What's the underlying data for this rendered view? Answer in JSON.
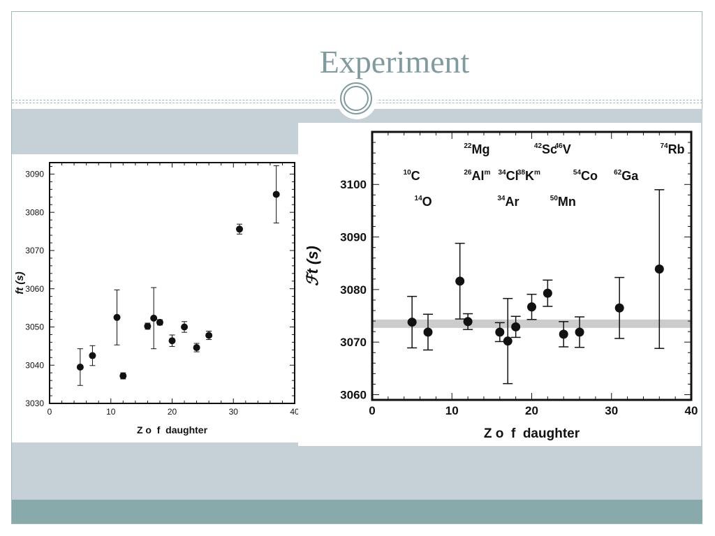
{
  "slide": {
    "title": "Experiment",
    "colors": {
      "title": "#7e9c9f",
      "band": "#c5d1d6",
      "footer": "#89aaab",
      "frame": "#9fb8b8"
    }
  },
  "chart_data": [
    {
      "type": "scatter",
      "title": "",
      "xlabel": "Z o  f  daughter",
      "ylabel": "ft (s)",
      "xlim": [
        0,
        40
      ],
      "ylim": [
        3030,
        3093
      ],
      "x_ticks": [
        0,
        10,
        20,
        30,
        40
      ],
      "y_ticks": [
        3030,
        3040,
        3050,
        3060,
        3070,
        3080,
        3090
      ],
      "points": [
        {
          "x": 5,
          "y": 3039.5,
          "err": 4.8
        },
        {
          "x": 7,
          "y": 3042.5,
          "err": 2.6
        },
        {
          "x": 11,
          "y": 3052.5,
          "err": 7.2
        },
        {
          "x": 12,
          "y": 3037.2,
          "err": 0.8
        },
        {
          "x": 16,
          "y": 3050.2,
          "err": 0.8
        },
        {
          "x": 17,
          "y": 3052.3,
          "err": 8.0
        },
        {
          "x": 18,
          "y": 3051.2,
          "err": 0.7
        },
        {
          "x": 20,
          "y": 3046.4,
          "err": 1.5
        },
        {
          "x": 22,
          "y": 3050.0,
          "err": 1.4
        },
        {
          "x": 24,
          "y": 3044.6,
          "err": 1.1
        },
        {
          "x": 26,
          "y": 3047.8,
          "err": 1.1
        },
        {
          "x": 31,
          "y": 3075.6,
          "err": 1.3
        },
        {
          "x": 37,
          "y": 3084.7,
          "err": 7.5
        }
      ]
    },
    {
      "type": "scatter",
      "title": "",
      "xlabel": "Z o  f  daughter",
      "ylabel": "ℱt (s)",
      "xlim": [
        0,
        40
      ],
      "ylim": [
        3059,
        3110
      ],
      "x_ticks": [
        0,
        10,
        20,
        30,
        40
      ],
      "y_ticks": [
        3060,
        3070,
        3080,
        3090,
        3100
      ],
      "band": {
        "y": 3073.5,
        "halfwidth": 0.8
      },
      "points": [
        {
          "x": 5,
          "y": 3073.8,
          "err": 4.9
        },
        {
          "x": 7,
          "y": 3071.9,
          "err": 3.4
        },
        {
          "x": 11,
          "y": 3081.6,
          "err": 7.2
        },
        {
          "x": 12,
          "y": 3073.9,
          "err": 1.5
        },
        {
          "x": 16,
          "y": 3071.9,
          "err": 1.8
        },
        {
          "x": 17,
          "y": 3070.2,
          "err": 8.1
        },
        {
          "x": 18,
          "y": 3072.9,
          "err": 2.0
        },
        {
          "x": 20,
          "y": 3076.7,
          "err": 2.4
        },
        {
          "x": 22,
          "y": 3079.3,
          "err": 2.5
        },
        {
          "x": 24,
          "y": 3071.5,
          "err": 2.4
        },
        {
          "x": 26,
          "y": 3071.9,
          "err": 2.9
        },
        {
          "x": 31,
          "y": 3076.5,
          "err": 5.8
        },
        {
          "x": 36,
          "y": 3083.9,
          "err": 15.1
        }
      ],
      "nuclide_labels": [
        {
          "mass": "22",
          "symbol": "Mg",
          "x": 11.5,
          "row": 1
        },
        {
          "mass": "42",
          "symbol": "Sc",
          "x": 20.3,
          "row": 1
        },
        {
          "mass": "46",
          "symbol": "V",
          "x": 22.9,
          "row": 1
        },
        {
          "mass": "74",
          "symbol": "Rb",
          "x": 36.1,
          "row": 1
        },
        {
          "mass": "10",
          "symbol": "C",
          "x": 3.9,
          "row": 2
        },
        {
          "mass": "26",
          "symbol": "Al",
          "sup2": "m",
          "x": 11.5,
          "row": 2
        },
        {
          "mass": "34",
          "symbol": "Cl",
          "x": 15.8,
          "row": 2
        },
        {
          "mass": "38",
          "symbol": "K",
          "sup2": "m",
          "x": 18.2,
          "row": 2
        },
        {
          "mass": "54",
          "symbol": "Co",
          "x": 25.2,
          "row": 2
        },
        {
          "mass": "62",
          "symbol": "Ga",
          "x": 30.3,
          "row": 2
        },
        {
          "mass": "14",
          "symbol": "O",
          "x": 5.3,
          "row": 3
        },
        {
          "mass": "34",
          "symbol": "Ar",
          "x": 15.7,
          "row": 3
        },
        {
          "mass": "50",
          "symbol": "Mn",
          "x": 22.3,
          "row": 3
        }
      ]
    }
  ]
}
